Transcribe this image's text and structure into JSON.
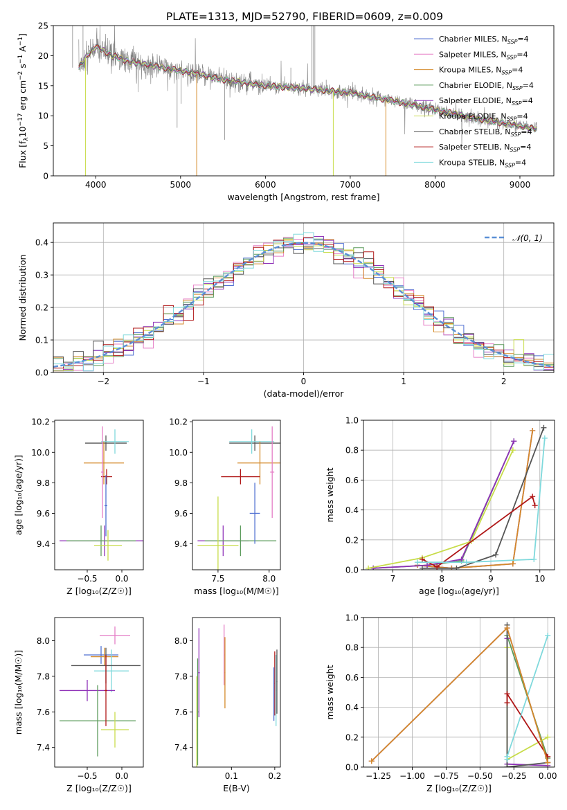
{
  "figure": {
    "title": "PLATE=1313, MJD=52790, FIBERID=0609, z=0.009"
  },
  "models": [
    {
      "name": "Chabrier MILES, N_SSP=4",
      "label_main": "Chabrier MILES, N",
      "label_sub": "SSP",
      "label_end": "=4",
      "color": "#4f6fd1"
    },
    {
      "name": "Salpeter MILES, N_SSP=4",
      "label_main": "Salpeter MILES, N",
      "label_sub": "SSP",
      "label_end": "=4",
      "color": "#e57ec6"
    },
    {
      "name": "Kroupa MILES, N_SSP=4",
      "label_main": "Kroupa MILES, N",
      "label_sub": "SSP",
      "label_end": "=4",
      "color": "#d48a2a"
    },
    {
      "name": "Chabrier ELODIE, N_SSP=4",
      "label_main": "Chabrier ELODIE, N",
      "label_sub": "SSP",
      "label_end": "=4",
      "color": "#5d9c5d"
    },
    {
      "name": "Salpeter ELODIE, N_SSP=4",
      "label_main": "Salpeter ELODIE, N",
      "label_sub": "SSP",
      "label_end": "=4",
      "color": "#8f32b8"
    },
    {
      "name": "Kroupa ELODIE, N_SSP=4",
      "label_main": "Kroupa ELODIE, N",
      "label_sub": "SSP",
      "label_end": "=4",
      "color": "#c8dc4a"
    },
    {
      "name": "Chabrier STELIB, N_SSP=4",
      "label_main": "Chabrier STELIB, N",
      "label_sub": "SSP",
      "label_end": "=4",
      "color": "#555555"
    },
    {
      "name": "Salpeter STELIB, N_SSP=4",
      "label_main": "Salpeter STELIB, N",
      "label_sub": "SSP",
      "label_end": "=4",
      "color": "#b01818"
    },
    {
      "name": "Kroupa STELIB, N_SSP=4",
      "label_main": "Kroupa STELIB, N",
      "label_sub": "SSP",
      "label_end": "=4",
      "color": "#7fd9dc"
    }
  ],
  "chart_data": [
    {
      "id": "spectrum",
      "type": "line",
      "xlabel": "wavelength [Angstrom, rest frame]",
      "ylabel": "Flux [f_λ 10^-17 erg cm^-2 s^-1 A^-1]",
      "xlim": [
        3500,
        9400
      ],
      "ylim": [
        0,
        25
      ],
      "xticks": [
        4000,
        5000,
        6000,
        7000,
        8000,
        9000
      ],
      "yticks": [
        0,
        5,
        10,
        15,
        20,
        25
      ],
      "legend": "top-right",
      "continuum_x": [
        3800,
        3900,
        4000,
        4200,
        4400,
        4600,
        4800,
        5000,
        5200,
        5500,
        6000,
        6500,
        7000,
        7500,
        8000,
        8500,
        9000,
        9200
      ],
      "continuum_y": [
        18,
        20,
        21.5,
        20,
        19,
        18.5,
        18,
        17.5,
        17,
        16,
        15,
        14.5,
        13.8,
        12.5,
        11,
        9.5,
        8.3,
        7.8
      ]
    },
    {
      "id": "residuals",
      "type": "line",
      "xlabel": "(data-model)/error",
      "ylabel": "Normed distribution",
      "xlim": [
        -2.5,
        2.5
      ],
      "ylim": [
        0,
        0.46
      ],
      "xticks": [
        -2,
        -1,
        0,
        1,
        2
      ],
      "yticks": [
        0.0,
        0.1,
        0.2,
        0.3,
        0.4
      ],
      "legend_entry": "𝒩(0, 1)",
      "legend": "top-right",
      "grid": true,
      "gaussian_color": "#5b8fd6"
    },
    {
      "id": "age_vs_Z",
      "type": "scatter",
      "errorbars": true,
      "xlabel": "Z [log₁₀(Z/Z☉)]",
      "ylabel": "age  [log₁₀(age/yr)]",
      "xlim": [
        -0.97,
        0.31
      ],
      "ylim": [
        9.23,
        10.21
      ],
      "xticks": [
        -0.5,
        0.0
      ],
      "yticks": [
        9.4,
        9.6,
        9.8,
        10.0,
        10.2
      ],
      "points": [
        {
          "x": -0.23,
          "y": 10.06,
          "xerr": 0.3,
          "yerr": 0.05,
          "model": 6
        },
        {
          "x": -0.1,
          "y": 10.07,
          "xerr": 0.2,
          "yerr": 0.08,
          "model": 8
        },
        {
          "x": -0.26,
          "y": 9.93,
          "xerr": 0.29,
          "yerr": 0.14,
          "model": 2
        },
        {
          "x": -0.22,
          "y": 9.84,
          "xerr": 0.08,
          "yerr": 0.05,
          "model": 7
        },
        {
          "x": -0.28,
          "y": 9.87,
          "xerr": 0.02,
          "yerr": 0.3,
          "model": 1
        },
        {
          "x": -0.25,
          "y": 9.42,
          "xerr": 0.65,
          "yerr": 0.1,
          "model": 4
        },
        {
          "x": -0.3,
          "y": 9.42,
          "xerr": 0.5,
          "yerr": 0.1,
          "model": 3
        },
        {
          "x": -0.2,
          "y": 9.39,
          "xerr": 0.2,
          "yerr": 0.1,
          "model": 5
        },
        {
          "x": -0.23,
          "y": 9.65,
          "xerr": 0.02,
          "yerr": 0.2,
          "model": 0
        }
      ]
    },
    {
      "id": "age_vs_mass",
      "type": "scatter",
      "errorbars": true,
      "xlabel": "mass [log₁₀(M/M☉)]",
      "ylabel": "",
      "xlim": [
        7.25,
        8.11
      ],
      "ylim": [
        9.23,
        10.21
      ],
      "xticks": [
        7.5,
        8.0
      ],
      "yticks": [
        9.4,
        9.6,
        9.8,
        10.0,
        10.2
      ],
      "points": [
        {
          "x": 7.86,
          "y": 10.06,
          "xerr": 0.25,
          "yerr": 0.05,
          "model": 6
        },
        {
          "x": 7.83,
          "y": 10.07,
          "xerr": 0.22,
          "yerr": 0.08,
          "model": 8
        },
        {
          "x": 7.91,
          "y": 9.93,
          "xerr": 0.22,
          "yerr": 0.14,
          "model": 2
        },
        {
          "x": 7.72,
          "y": 9.84,
          "xerr": 0.19,
          "yerr": 0.05,
          "model": 7
        },
        {
          "x": 8.03,
          "y": 9.87,
          "xerr": 0.02,
          "yerr": 0.3,
          "model": 1
        },
        {
          "x": 7.55,
          "y": 9.42,
          "xerr": 0.25,
          "yerr": 0.1,
          "model": 4
        },
        {
          "x": 7.72,
          "y": 9.42,
          "xerr": 0.35,
          "yerr": 0.1,
          "model": 3
        },
        {
          "x": 7.5,
          "y": 9.39,
          "xerr": 0.2,
          "yerr": 0.32,
          "model": 5
        },
        {
          "x": 7.86,
          "y": 9.6,
          "xerr": 0.05,
          "yerr": 0.2,
          "model": 0
        }
      ]
    },
    {
      "id": "weight_vs_age",
      "type": "line",
      "xlabel": "age  [log₁₀(age/yr)]",
      "ylabel": "mass weight",
      "xlim": [
        6.4,
        10.3
      ],
      "ylim": [
        0,
        1
      ],
      "grid": true,
      "xticks": [
        7,
        8,
        9,
        10
      ],
      "yticks": [
        0.0,
        0.2,
        0.4,
        0.6,
        0.8,
        1.0
      ],
      "series": [
        {
          "model": 0,
          "x": [
            7.5,
            8.2,
            9.45,
            9.85
          ],
          "y": [
            0.03,
            0.01,
            0.04,
            0.93
          ]
        },
        {
          "model": 1,
          "x": [
            7.5,
            8.2,
            9.45,
            9.85
          ],
          "y": [
            0.03,
            0.01,
            0.04,
            0.93
          ]
        },
        {
          "model": 2,
          "x": [
            7.5,
            8.2,
            9.45,
            9.85
          ],
          "y": [
            0.03,
            0.01,
            0.04,
            0.93
          ]
        },
        {
          "model": 3,
          "x": [
            6.6,
            7.7,
            8.4,
            9.47
          ],
          "y": [
            0.01,
            0.03,
            0.06,
            0.86
          ]
        },
        {
          "model": 4,
          "x": [
            6.6,
            7.7,
            8.4,
            9.47
          ],
          "y": [
            0.01,
            0.03,
            0.07,
            0.86
          ]
        },
        {
          "model": 5,
          "x": [
            6.5,
            7.6,
            8.6,
            9.45
          ],
          "y": [
            0.01,
            0.08,
            0.19,
            0.8
          ]
        },
        {
          "model": 6,
          "x": [
            7.6,
            8.3,
            9.1,
            10.08
          ],
          "y": [
            0.01,
            0.01,
            0.1,
            0.95
          ]
        },
        {
          "model": 7,
          "x": [
            7.6,
            7.9,
            9.85,
            9.9
          ],
          "y": [
            0.07,
            0.02,
            0.49,
            0.43
          ]
        },
        {
          "model": 8,
          "x": [
            7.5,
            8.5,
            9.88,
            10.1
          ],
          "y": [
            0.05,
            0.05,
            0.07,
            0.88
          ]
        }
      ]
    },
    {
      "id": "mass_vs_Z",
      "type": "scatter",
      "errorbars": true,
      "xlabel": "Z [log₁₀(Z/Z☉)]",
      "ylabel": "mass [log₁₀(M/M☉)]",
      "xlim": [
        -0.97,
        0.31
      ],
      "ylim": [
        7.29,
        8.13
      ],
      "xticks": [
        -0.5,
        0.0
      ],
      "yticks": [
        7.4,
        7.6,
        7.8,
        8.0
      ],
      "points": [
        {
          "x": -0.1,
          "y": 8.03,
          "xerr": 0.22,
          "yerr": 0.05,
          "model": 1
        },
        {
          "x": -0.3,
          "y": 7.92,
          "xerr": 0.25,
          "yerr": 0.05,
          "model": 0
        },
        {
          "x": -0.25,
          "y": 7.91,
          "xerr": 0.2,
          "yerr": 0.05,
          "model": 2
        },
        {
          "x": -0.15,
          "y": 7.83,
          "xerr": 0.25,
          "yerr": 0.12,
          "model": 8
        },
        {
          "x": -0.23,
          "y": 7.86,
          "xerr": 0.5,
          "yerr": 0.1,
          "model": 6
        },
        {
          "x": -0.5,
          "y": 7.72,
          "xerr": 0.4,
          "yerr": 0.06,
          "model": 4
        },
        {
          "x": -0.35,
          "y": 7.55,
          "xerr": 0.55,
          "yerr": 0.2,
          "model": 3
        },
        {
          "x": -0.1,
          "y": 7.5,
          "xerr": 0.2,
          "yerr": 0.1,
          "model": 5
        },
        {
          "x": -0.23,
          "y": 7.72,
          "xerr": 0.02,
          "yerr": 0.2,
          "model": 7
        }
      ]
    },
    {
      "id": "mass_vs_EBV",
      "type": "scatter",
      "errorbars": true,
      "xlabel": "E(B-V)",
      "ylabel": "",
      "xlim": [
        0.01,
        0.213
      ],
      "ylim": [
        7.29,
        8.13
      ],
      "xticks": [
        0.1,
        0.2
      ],
      "yticks": [
        7.4,
        7.6,
        7.8,
        8.0
      ],
      "points": [
        {
          "x": 0.022,
          "y": 7.6,
          "xerr": 0.002,
          "yerr": 0.3,
          "model": 3
        },
        {
          "x": 0.025,
          "y": 7.82,
          "xerr": 0.002,
          "yerr": 0.25,
          "model": 4
        },
        {
          "x": 0.02,
          "y": 7.5,
          "xerr": 0.001,
          "yerr": 0.3,
          "model": 5
        },
        {
          "x": 0.083,
          "y": 7.92,
          "xerr": 0.001,
          "yerr": 0.17,
          "model": 1
        },
        {
          "x": 0.085,
          "y": 7.82,
          "xerr": 0.001,
          "yerr": 0.2,
          "model": 2
        },
        {
          "x": 0.2,
          "y": 7.76,
          "xerr": 0.001,
          "yerr": 0.18,
          "model": 7
        },
        {
          "x": 0.203,
          "y": 7.72,
          "xerr": 0.001,
          "yerr": 0.2,
          "model": 8
        },
        {
          "x": 0.205,
          "y": 7.77,
          "xerr": 0.001,
          "yerr": 0.18,
          "model": 6
        },
        {
          "x": 0.198,
          "y": 7.7,
          "xerr": 0.001,
          "yerr": 0.15,
          "model": 0
        }
      ]
    },
    {
      "id": "weight_vs_Z",
      "type": "line",
      "xlabel": "Z [log₁₀(Z/Z☉)]",
      "ylabel": "mass weight",
      "xlim": [
        -1.36,
        0.05
      ],
      "ylim": [
        0,
        1
      ],
      "grid": true,
      "xticks": [
        -1.25,
        -1.0,
        -0.75,
        -0.5,
        -0.25,
        0.0
      ],
      "yticks": [
        0.0,
        0.2,
        0.4,
        0.6,
        0.8,
        1.0
      ],
      "series": [
        {
          "model": 0,
          "x": [
            -1.3,
            -0.3,
            0.0
          ],
          "y": [
            0.04,
            0.93,
            0.03
          ]
        },
        {
          "model": 1,
          "x": [
            -1.3,
            -0.3,
            0.0
          ],
          "y": [
            0.04,
            0.93,
            0.03
          ]
        },
        {
          "model": 3,
          "x": [
            -0.3,
            -0.3,
            0.0
          ],
          "y": [
            0.02,
            0.88,
            0.06
          ]
        },
        {
          "model": 4,
          "x": [
            -0.3,
            -0.3,
            0.0
          ],
          "y": [
            0.86,
            0.02,
            0.01
          ]
        },
        {
          "model": 5,
          "x": [
            -0.3,
            -0.3,
            0.0
          ],
          "y": [
            0.8,
            0.05,
            0.2
          ]
        },
        {
          "model": 6,
          "x": [
            -0.3,
            -0.3,
            0.0
          ],
          "y": [
            0.95,
            0.0,
            0.03
          ]
        },
        {
          "model": 7,
          "x": [
            -0.3,
            -0.3,
            0.0
          ],
          "y": [
            0.43,
            0.49,
            0.07
          ]
        },
        {
          "model": 8,
          "x": [
            -0.3,
            -0.3,
            0.0
          ],
          "y": [
            0.05,
            0.07,
            0.88
          ]
        },
        {
          "model": 2,
          "x": [
            -1.3,
            -0.3,
            0.0
          ],
          "y": [
            0.04,
            0.93,
            0.03
          ]
        }
      ]
    }
  ]
}
